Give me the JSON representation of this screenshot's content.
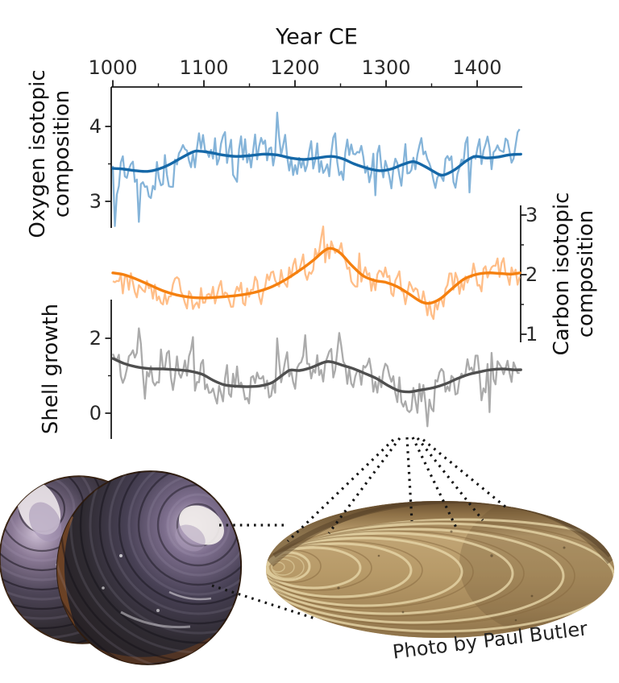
{
  "figure": {
    "photo_credit": "Photo by Paul Butler"
  },
  "chart_data": {
    "type": "line",
    "x_axis": {
      "title": "Year CE",
      "position": "top",
      "ticks": [
        1000,
        1100,
        1200,
        1300,
        1400
      ],
      "minor_ticks": [
        1050,
        1150,
        1250,
        1350
      ],
      "range": [
        998,
        1449
      ]
    },
    "series": [
      {
        "name": "Oxygen isotopic composition",
        "axis_side": "left",
        "axis_label_lines": [
          "Oxygen isotopic",
          "composition"
        ],
        "axis_ticks": [
          4,
          3
        ],
        "axis_minor_ticks": [
          3.5
        ],
        "color_raw": "#85B4D9",
        "color_smooth": "#1568A8",
        "x_range": [
          1000,
          1448
        ],
        "smooth": [
          [
            1000,
            3.44
          ],
          [
            1012,
            3.43
          ],
          [
            1025,
            3.41
          ],
          [
            1038,
            3.4
          ],
          [
            1050,
            3.43
          ],
          [
            1062,
            3.49
          ],
          [
            1075,
            3.58
          ],
          [
            1088,
            3.66
          ],
          [
            1095,
            3.67
          ],
          [
            1108,
            3.65
          ],
          [
            1120,
            3.62
          ],
          [
            1135,
            3.6
          ],
          [
            1150,
            3.61
          ],
          [
            1165,
            3.63
          ],
          [
            1180,
            3.62
          ],
          [
            1195,
            3.58
          ],
          [
            1210,
            3.56
          ],
          [
            1225,
            3.58
          ],
          [
            1240,
            3.6
          ],
          [
            1252,
            3.57
          ],
          [
            1265,
            3.5
          ],
          [
            1280,
            3.44
          ],
          [
            1293,
            3.41
          ],
          [
            1305,
            3.43
          ],
          [
            1318,
            3.49
          ],
          [
            1330,
            3.53
          ],
          [
            1342,
            3.47
          ],
          [
            1352,
            3.4
          ],
          [
            1362,
            3.35
          ],
          [
            1375,
            3.42
          ],
          [
            1388,
            3.54
          ],
          [
            1398,
            3.6
          ],
          [
            1410,
            3.58
          ],
          [
            1422,
            3.59
          ],
          [
            1435,
            3.62
          ],
          [
            1448,
            3.63
          ]
        ],
        "noise": {
          "amplitude": 0.32,
          "seed": 13,
          "step_years": 2.2,
          "clamp": [
            2.58,
            4.42
          ]
        }
      },
      {
        "name": "Carbon isotopic composition",
        "axis_side": "right",
        "axis_label_lines": [
          "Carbon isotopic",
          "composition"
        ],
        "axis_ticks": [
          3,
          2,
          1
        ],
        "axis_minor_ticks": [
          2.5,
          1.5
        ],
        "color_raw": "#FFBE88",
        "color_smooth": "#F5800F",
        "x_range": [
          1000,
          1447
        ],
        "smooth": [
          [
            1000,
            2.03
          ],
          [
            1012,
            2.0
          ],
          [
            1025,
            1.93
          ],
          [
            1040,
            1.83
          ],
          [
            1055,
            1.73
          ],
          [
            1070,
            1.66
          ],
          [
            1085,
            1.62
          ],
          [
            1100,
            1.61
          ],
          [
            1115,
            1.62
          ],
          [
            1130,
            1.64
          ],
          [
            1145,
            1.67
          ],
          [
            1160,
            1.72
          ],
          [
            1175,
            1.8
          ],
          [
            1190,
            1.92
          ],
          [
            1205,
            2.07
          ],
          [
            1220,
            2.24
          ],
          [
            1232,
            2.4
          ],
          [
            1240,
            2.44
          ],
          [
            1250,
            2.36
          ],
          [
            1262,
            2.16
          ],
          [
            1275,
            1.98
          ],
          [
            1288,
            1.9
          ],
          [
            1300,
            1.87
          ],
          [
            1312,
            1.8
          ],
          [
            1325,
            1.68
          ],
          [
            1338,
            1.55
          ],
          [
            1348,
            1.52
          ],
          [
            1360,
            1.6
          ],
          [
            1372,
            1.76
          ],
          [
            1385,
            1.92
          ],
          [
            1398,
            2.0
          ],
          [
            1412,
            2.03
          ],
          [
            1425,
            2.02
          ],
          [
            1438,
            2.01
          ],
          [
            1447,
            2.03
          ]
        ],
        "noise": {
          "amplitude": 0.3,
          "seed": 29,
          "step_years": 2.2,
          "clamp": [
            1.12,
            3.06
          ]
        }
      },
      {
        "name": "Shell growth",
        "axis_side": "left",
        "axis_label_lines": [
          "Shell growth"
        ],
        "axis_ticks": [
          2,
          0
        ],
        "axis_minor_ticks": [
          1
        ],
        "color_raw": "#ABABAB",
        "color_smooth": "#4F4F4F",
        "x_range": [
          1000,
          1448
        ],
        "smooth": [
          [
            1000,
            1.46
          ],
          [
            1012,
            1.33
          ],
          [
            1025,
            1.24
          ],
          [
            1040,
            1.19
          ],
          [
            1055,
            1.18
          ],
          [
            1070,
            1.16
          ],
          [
            1085,
            1.12
          ],
          [
            1098,
            1.04
          ],
          [
            1110,
            0.88
          ],
          [
            1122,
            0.76
          ],
          [
            1135,
            0.72
          ],
          [
            1150,
            0.71
          ],
          [
            1162,
            0.73
          ],
          [
            1175,
            0.82
          ],
          [
            1188,
            1.05
          ],
          [
            1195,
            1.15
          ],
          [
            1205,
            1.14
          ],
          [
            1218,
            1.22
          ],
          [
            1232,
            1.36
          ],
          [
            1240,
            1.37
          ],
          [
            1252,
            1.28
          ],
          [
            1265,
            1.18
          ],
          [
            1278,
            1.05
          ],
          [
            1290,
            0.92
          ],
          [
            1302,
            0.74
          ],
          [
            1314,
            0.6
          ],
          [
            1326,
            0.57
          ],
          [
            1338,
            0.62
          ],
          [
            1352,
            0.68
          ],
          [
            1365,
            0.78
          ],
          [
            1378,
            0.92
          ],
          [
            1390,
            1.03
          ],
          [
            1402,
            1.1
          ],
          [
            1415,
            1.16
          ],
          [
            1428,
            1.18
          ],
          [
            1440,
            1.16
          ],
          [
            1448,
            1.16
          ]
        ],
        "noise": {
          "amplitude": 0.6,
          "seed": 47,
          "step_years": 2.2,
          "clamp": [
            -0.72,
            2.62
          ]
        }
      }
    ]
  }
}
